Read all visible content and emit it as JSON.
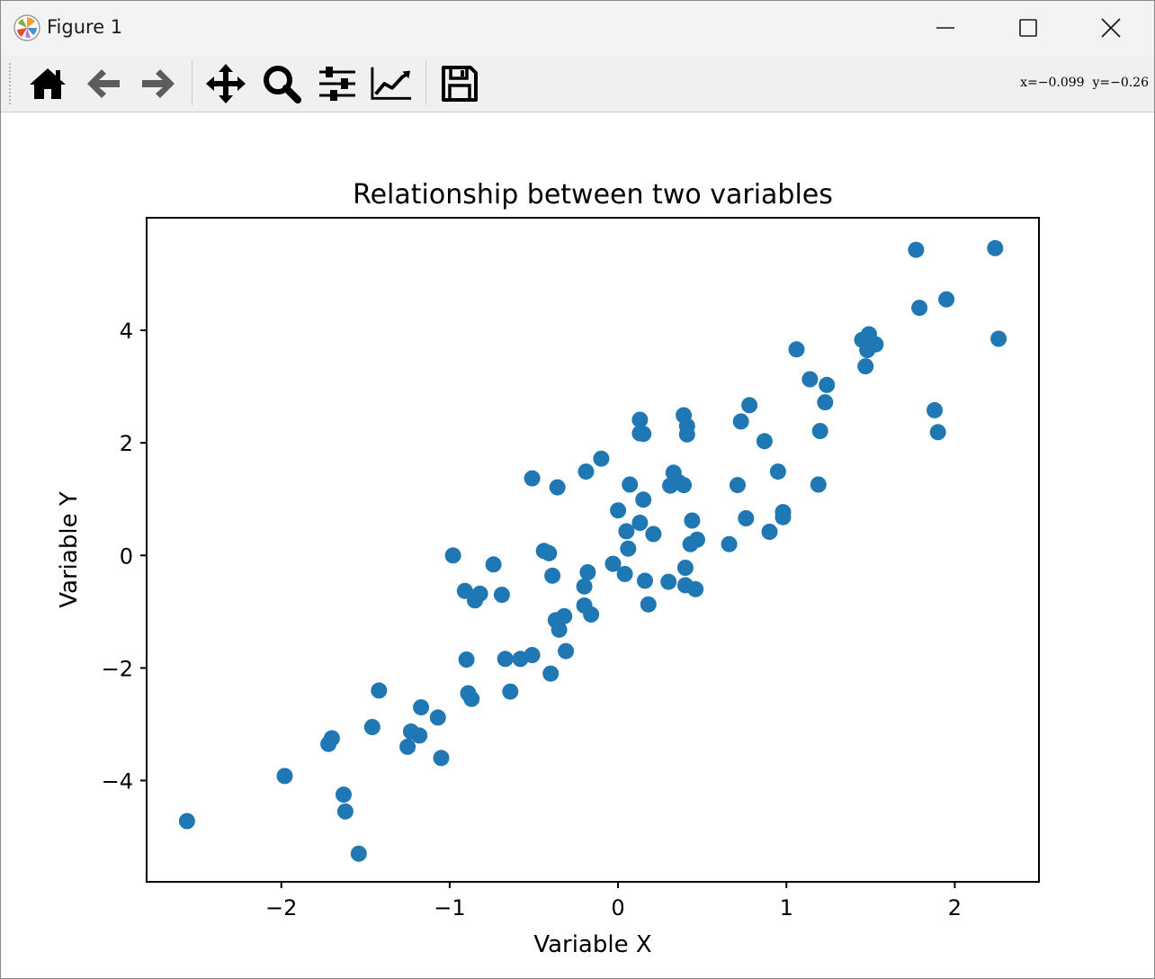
{
  "window": {
    "title": "Figure 1"
  },
  "toolbar": {
    "buttons": [
      {
        "name": "home-icon"
      },
      {
        "name": "back-arrow-icon"
      },
      {
        "name": "forward-arrow-icon"
      },
      {
        "name": "pan-icon"
      },
      {
        "name": "zoom-icon"
      },
      {
        "name": "subplots-icon"
      },
      {
        "name": "edit-curves-icon"
      },
      {
        "name": "save-icon"
      }
    ],
    "coords": "x=−0.099  y=−0.26"
  },
  "chart_data": {
    "type": "scatter",
    "title": "Relationship between two variables",
    "xlabel": "Variable X",
    "ylabel": "Variable Y",
    "xlim": [
      -2.8,
      2.5
    ],
    "ylim": [
      -5.8,
      6.0
    ],
    "xticks": [
      -2,
      -1,
      0,
      1,
      2
    ],
    "xtick_labels": [
      "−2",
      "−1",
      "0",
      "1",
      "2"
    ],
    "yticks": [
      -4,
      -2,
      0,
      2,
      4
    ],
    "ytick_labels": [
      "−4",
      "−2",
      "0",
      "2",
      "4"
    ],
    "grid": false,
    "marker_color": "#1f77b4",
    "points": [
      [
        -2.56,
        -4.72
      ],
      [
        -1.98,
        -3.92
      ],
      [
        -1.72,
        -3.35
      ],
      [
        -1.7,
        -3.25
      ],
      [
        -1.63,
        -4.25
      ],
      [
        -1.62,
        -4.55
      ],
      [
        -1.54,
        -5.3
      ],
      [
        -1.46,
        -3.05
      ],
      [
        -1.42,
        -2.4
      ],
      [
        -1.25,
        -3.4
      ],
      [
        -1.23,
        -3.13
      ],
      [
        -1.18,
        -3.2
      ],
      [
        -1.17,
        -2.7
      ],
      [
        -1.07,
        -2.88
      ],
      [
        -1.05,
        -3.6
      ],
      [
        -0.98,
        0.0
      ],
      [
        -0.91,
        -0.63
      ],
      [
        -0.9,
        -1.85
      ],
      [
        -0.89,
        -2.45
      ],
      [
        -0.87,
        -2.55
      ],
      [
        -0.85,
        -0.8
      ],
      [
        -0.82,
        -0.68
      ],
      [
        -0.74,
        -0.16
      ],
      [
        -0.69,
        -0.7
      ],
      [
        -0.67,
        -1.84
      ],
      [
        -0.64,
        -2.42
      ],
      [
        -0.58,
        -1.84
      ],
      [
        -0.51,
        -1.77
      ],
      [
        -0.51,
        1.37
      ],
      [
        -0.44,
        0.08
      ],
      [
        -0.41,
        0.04
      ],
      [
        -0.4,
        -2.1
      ],
      [
        -0.39,
        -0.36
      ],
      [
        -0.37,
        -1.15
      ],
      [
        -0.36,
        1.21
      ],
      [
        -0.35,
        -1.32
      ],
      [
        -0.32,
        -1.08
      ],
      [
        -0.31,
        -1.7
      ],
      [
        -0.2,
        -0.89
      ],
      [
        -0.2,
        -0.55
      ],
      [
        -0.19,
        1.49
      ],
      [
        -0.18,
        -0.3
      ],
      [
        -0.16,
        -1.05
      ],
      [
        -0.1,
        1.72
      ],
      [
        -0.03,
        -0.15
      ],
      [
        0.0,
        0.8
      ],
      [
        0.04,
        -0.33
      ],
      [
        0.05,
        0.43
      ],
      [
        0.06,
        0.12
      ],
      [
        0.07,
        1.26
      ],
      [
        0.13,
        0.58
      ],
      [
        0.13,
        2.17
      ],
      [
        0.13,
        2.41
      ],
      [
        0.15,
        2.16
      ],
      [
        0.15,
        0.99
      ],
      [
        0.16,
        -0.45
      ],
      [
        0.18,
        -0.87
      ],
      [
        0.21,
        0.38
      ],
      [
        0.3,
        -0.47
      ],
      [
        0.31,
        1.24
      ],
      [
        0.33,
        1.47
      ],
      [
        0.36,
        1.3
      ],
      [
        0.39,
        2.49
      ],
      [
        0.39,
        1.25
      ],
      [
        0.4,
        -0.22
      ],
      [
        0.4,
        -0.53
      ],
      [
        0.41,
        2.15
      ],
      [
        0.41,
        2.3
      ],
      [
        0.43,
        0.2
      ],
      [
        0.44,
        0.62
      ],
      [
        0.46,
        -0.6
      ],
      [
        0.47,
        0.28
      ],
      [
        0.66,
        0.2
      ],
      [
        0.71,
        1.25
      ],
      [
        0.73,
        2.38
      ],
      [
        0.76,
        0.66
      ],
      [
        0.78,
        2.67
      ],
      [
        0.87,
        2.03
      ],
      [
        0.9,
        0.42
      ],
      [
        0.95,
        1.49
      ],
      [
        0.98,
        0.77
      ],
      [
        0.98,
        0.68
      ],
      [
        1.06,
        3.66
      ],
      [
        1.14,
        3.13
      ],
      [
        1.19,
        1.26
      ],
      [
        1.2,
        2.21
      ],
      [
        1.23,
        2.72
      ],
      [
        1.24,
        3.03
      ],
      [
        1.45,
        3.83
      ],
      [
        1.47,
        3.36
      ],
      [
        1.48,
        3.65
      ],
      [
        1.49,
        3.93
      ],
      [
        1.53,
        3.75
      ],
      [
        1.77,
        5.43
      ],
      [
        1.79,
        4.4
      ],
      [
        1.88,
        2.58
      ],
      [
        1.9,
        2.19
      ],
      [
        1.95,
        4.55
      ],
      [
        2.24,
        5.46
      ],
      [
        2.26,
        3.85
      ]
    ]
  }
}
